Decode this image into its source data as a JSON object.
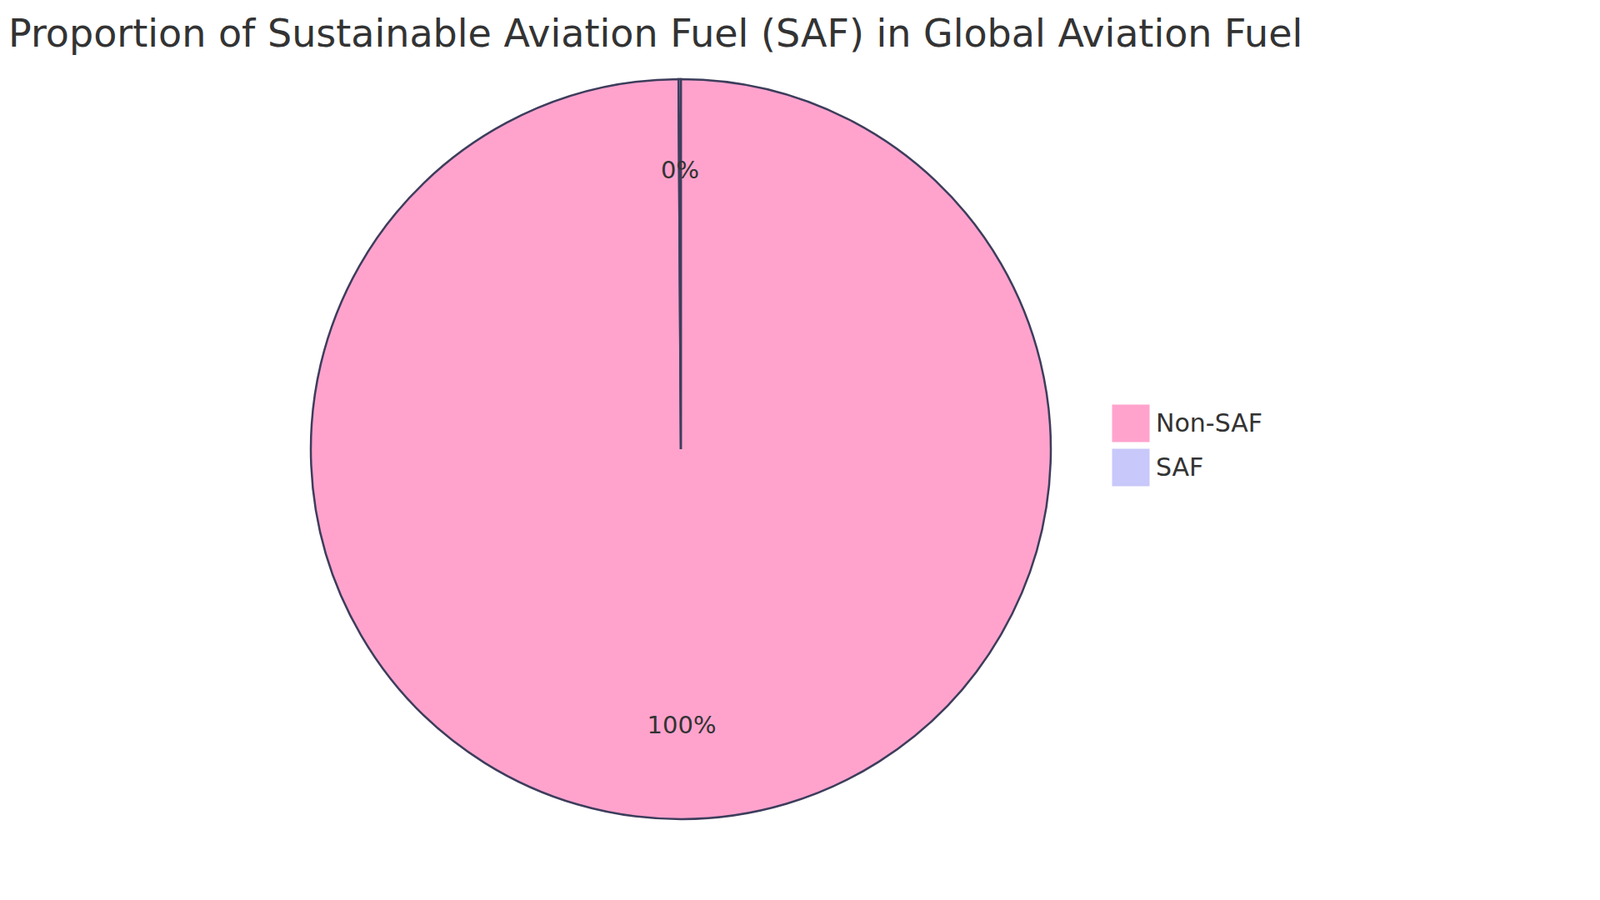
{
  "chart_data": {
    "type": "pie",
    "title": "Proportion of Sustainable Aviation Fuel (SAF) in Global Aviation Fuel",
    "categories": [
      "Non-SAF",
      "SAF"
    ],
    "values": [
      99.9,
      0.1
    ],
    "value_labels": [
      "100%",
      "0%"
    ],
    "colors": [
      "#ffa3cd",
      "#c8c8fa"
    ],
    "data_labels": true,
    "legend": "right"
  }
}
